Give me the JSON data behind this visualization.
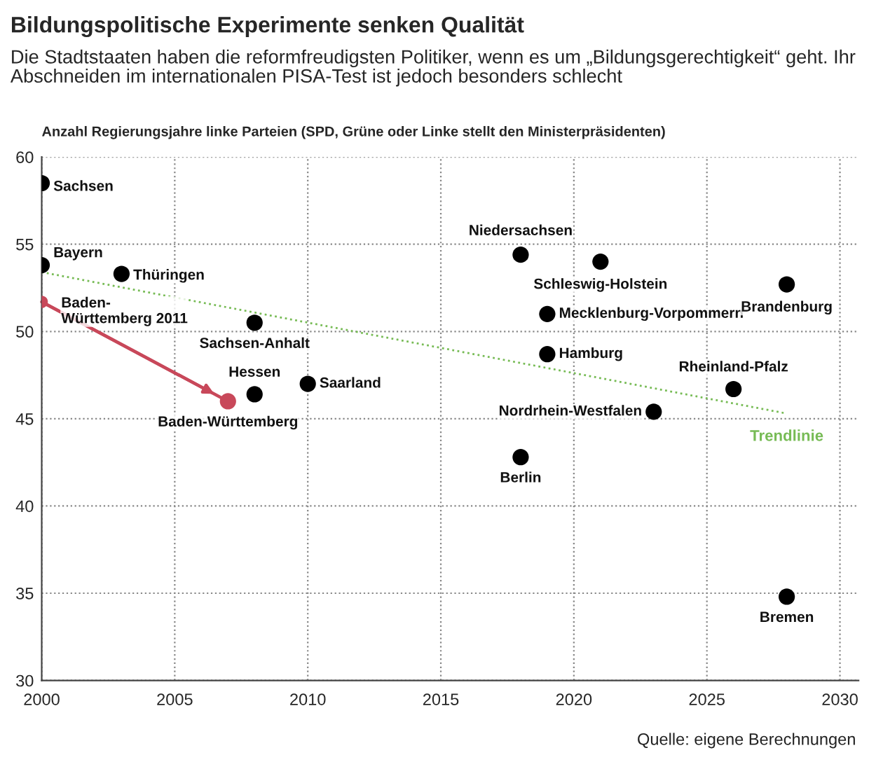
{
  "chart_data": {
    "type": "scatter",
    "title": "Bildungspolitische Experimente senken Qualität",
    "subtitle": "Die Stadtstaaten haben die reformfreudigsten Politiker, wenn es um „Bildungsgerechtigkeit“ geht. Ihr Abschneiden im internationalen PISA-Test ist jedoch besonders schlecht",
    "ylabel": "Anzahl Regierungsjahre linke Parteien (SPD, Grüne oder Linke stellt den Ministerpräsidenten)",
    "xlim": [
      2000,
      2030.7
    ],
    "xticks": [
      2000,
      2005,
      2010,
      2015,
      2020,
      2025,
      2030
    ],
    "ylim": [
      30,
      60
    ],
    "yticks": [
      30,
      35,
      40,
      45,
      50,
      55,
      60
    ],
    "grid": true,
    "marker": "circle",
    "series": [
      {
        "color": "#000000",
        "x": [
          2000,
          2000,
          2003,
          2008,
          2008,
          2010,
          2018,
          2021,
          2019,
          2019,
          2023,
          2018,
          2028,
          2026,
          2028
        ],
        "values": [
          58.5,
          53.8,
          53.3,
          50.5,
          46.4,
          47.0,
          54.4,
          54.0,
          51.0,
          48.7,
          45.4,
          42.8,
          52.7,
          46.7,
          34.8
        ]
      },
      {
        "type": "line",
        "color": "#c8485a",
        "x": [
          2000,
          2007
        ],
        "values": [
          51.7,
          46.0
        ]
      },
      {
        "type": "line",
        "name": "Trendlinie",
        "color": "#77bb55",
        "line_style": "dotted",
        "marker": "none",
        "x": [
          2000,
          2028
        ],
        "values": [
          53.4,
          45.3
        ]
      }
    ],
    "annotations": [
      {
        "text": "Sachsen",
        "x": 2000,
        "y": 58.5
      },
      {
        "text": "Bayern",
        "x": 2000,
        "y": 53.8
      },
      {
        "text": "Thüringen",
        "x": 2003,
        "y": 53.3
      },
      {
        "text": "Sachsen-Anhalt",
        "x": 2008,
        "y": 50.5
      },
      {
        "text": "Hessen",
        "x": 2008,
        "y": 46.4
      },
      {
        "text": "Saarland",
        "x": 2010,
        "y": 47.0
      },
      {
        "text": "Niedersachsen",
        "x": 2018,
        "y": 54.4
      },
      {
        "text": "Schleswig-Holstein",
        "x": 2021,
        "y": 54.0
      },
      {
        "text": "Mecklenburg-Vorpommern",
        "x": 2019,
        "y": 51.0
      },
      {
        "text": "Hamburg",
        "x": 2019,
        "y": 48.7
      },
      {
        "text": "Nordrhein-Westfalen",
        "x": 2023,
        "y": 45.4
      },
      {
        "text": "Berlin",
        "x": 2018,
        "y": 42.8
      },
      {
        "text": "Brandenburg",
        "x": 2028,
        "y": 52.7
      },
      {
        "text": "Rheinland-Pfalz",
        "x": 2026,
        "y": 46.7
      },
      {
        "text": "Bremen",
        "x": 2028,
        "y": 34.8
      },
      {
        "text": "Baden-\nWürttemberg 2011",
        "x": 2000,
        "y": 51.7
      },
      {
        "text": "Baden-Württemberg",
        "x": 2007,
        "y": 46.0
      },
      "Quelle: eigene Berechnungen"
    ]
  }
}
